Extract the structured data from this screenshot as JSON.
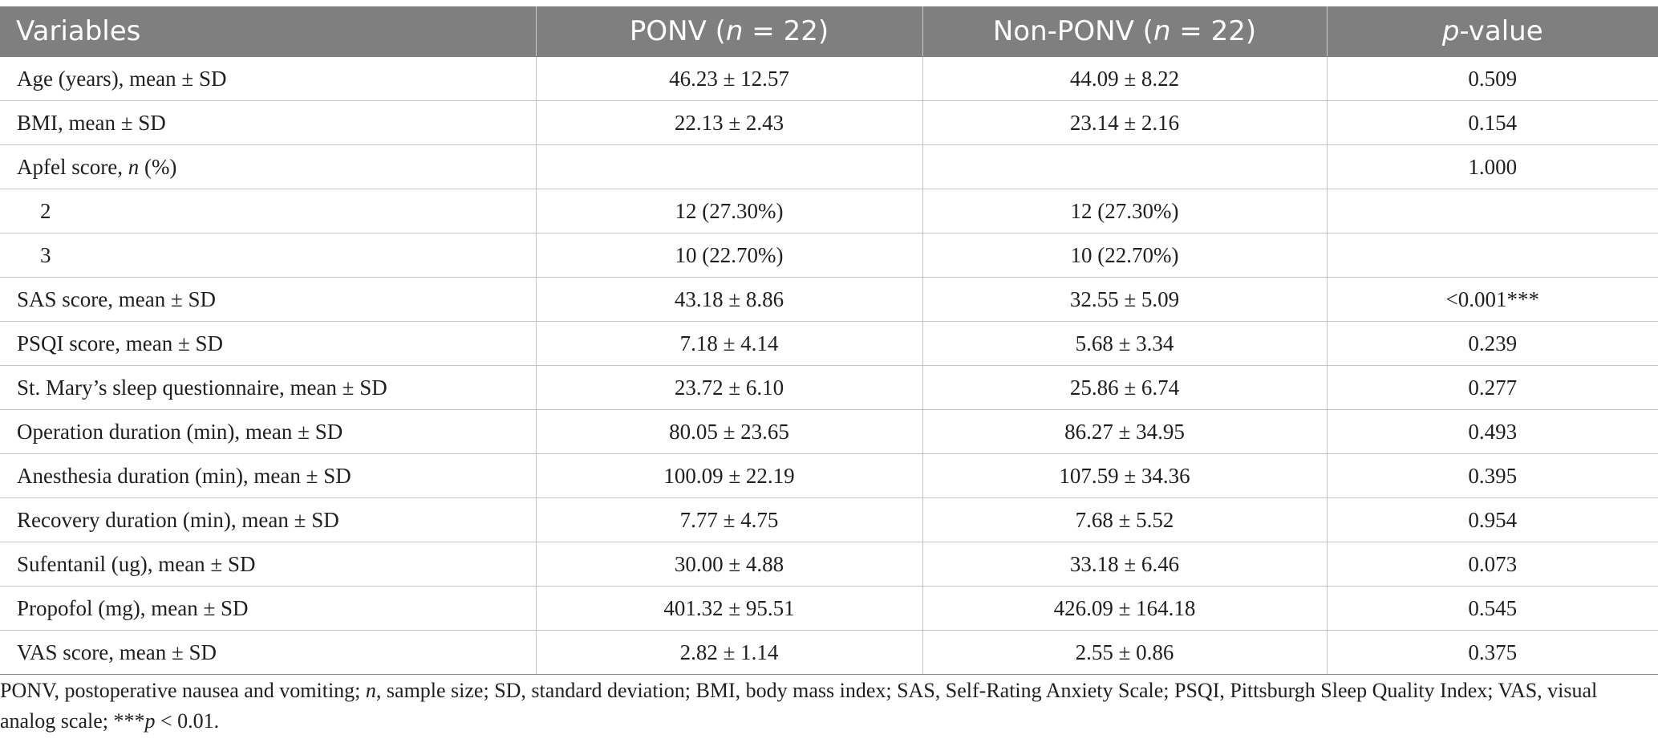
{
  "header": {
    "variables": "Variables",
    "ponv_label": "PONV (",
    "ponv_n": "n",
    "ponv_eq": " = 22)",
    "nonponv_label": "Non-PONV (",
    "nonponv_n": "n",
    "nonponv_eq": " = 22)",
    "pvalue_p": "p",
    "pvalue_rest": "-value"
  },
  "rows": [
    {
      "variable": "Age (years), mean ± SD",
      "ponv": "46.23 ± 12.57",
      "nonponv": "44.09 ± 8.22",
      "p": "0.509"
    },
    {
      "variable": "BMI, mean ± SD",
      "ponv": "22.13 ± 2.43",
      "nonponv": "23.14 ± 2.16",
      "p": "0.154"
    },
    {
      "variable_pre": "Apfel score, ",
      "variable_n": "n",
      "variable_post": " (%)",
      "ponv": "",
      "nonponv": "",
      "p": "1.000"
    },
    {
      "variable": "2",
      "ponv": "12 (27.30%)",
      "nonponv": "12 (27.30%)",
      "p": ""
    },
    {
      "variable": "3",
      "ponv": "10 (22.70%)",
      "nonponv": "10 (22.70%)",
      "p": ""
    },
    {
      "variable": "SAS score, mean ± SD",
      "ponv": "43.18 ± 8.86",
      "nonponv": "32.55 ± 5.09",
      "p": "<0.001***"
    },
    {
      "variable": "PSQI score, mean ± SD",
      "ponv": "7.18 ± 4.14",
      "nonponv": "5.68 ± 3.34",
      "p": "0.239"
    },
    {
      "variable": "St. Mary’s sleep questionnaire, mean ± SD",
      "ponv": "23.72 ± 6.10",
      "nonponv": "25.86 ± 6.74",
      "p": "0.277"
    },
    {
      "variable": "Operation duration (min), mean ± SD",
      "ponv": "80.05 ± 23.65",
      "nonponv": "86.27 ± 34.95",
      "p": "0.493"
    },
    {
      "variable": "Anesthesia duration (min), mean ± SD",
      "ponv": "100.09 ± 22.19",
      "nonponv": "107.59 ± 34.36",
      "p": "0.395"
    },
    {
      "variable": "Recovery duration (min), mean ± SD",
      "ponv": "7.77 ± 4.75",
      "nonponv": "7.68 ± 5.52",
      "p": "0.954"
    },
    {
      "variable": "Sufentanil (ug), mean ± SD",
      "ponv": "30.00 ± 4.88",
      "nonponv": "33.18 ± 6.46",
      "p": "0.073"
    },
    {
      "variable": "Propofol (mg), mean ± SD",
      "ponv": "401.32 ± 95.51",
      "nonponv": "426.09 ± 164.18",
      "p": "0.545"
    },
    {
      "variable": "VAS score, mean ± SD",
      "ponv": "2.82 ± 1.14",
      "nonponv": "2.55 ± 0.86",
      "p": "0.375"
    }
  ],
  "footnote": {
    "part1": "PONV, postoperative nausea and vomiting; ",
    "n_italic": "n",
    "part2": ", sample size; SD, standard deviation; BMI, body mass index; SAS, Self-Rating Anxiety Scale; PSQI, Pittsburgh Sleep Quality Index; VAS, visual analog scale; ***",
    "p_italic": "p",
    "part3": " < 0.01."
  },
  "colors": {
    "header_bg": "#7f7f7f",
    "header_text": "#ffffff",
    "grid": "#c4c4c4",
    "text": "#1f1f1f"
  }
}
